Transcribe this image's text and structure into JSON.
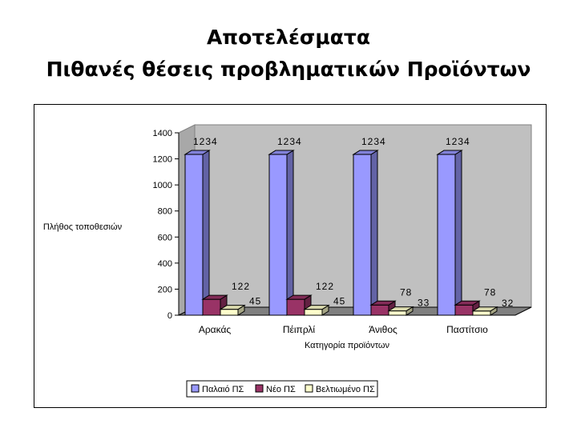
{
  "slide": {
    "title_line1": "Αποτελέσματα",
    "title_line2": "Πιθανές θέσεις προβληματικών Προϊόντων"
  },
  "chart_data": {
    "type": "bar",
    "style": "3d-clustered-column",
    "categories": [
      "Αρακάς",
      "Πέιπρλί",
      "Άνιθος",
      "Παστίτσιο"
    ],
    "series": [
      {
        "name": "Παλαιό ΠΣ",
        "values": [
          1234,
          1234,
          1234,
          1234
        ],
        "labels": [
          "1234",
          "1234",
          "1234",
          "1234"
        ],
        "color": "#9999FF"
      },
      {
        "name": "Νέο ΠΣ",
        "values": [
          122,
          122,
          78,
          78
        ],
        "labels": [
          "122",
          "122",
          "78",
          "78"
        ],
        "color": "#993366"
      },
      {
        "name": "Βελτιωμένο ΠΣ",
        "values": [
          45,
          45,
          33,
          32
        ],
        "labels": [
          "45",
          "45",
          "33",
          "32"
        ],
        "color": "#FFFFCC"
      }
    ],
    "xlabel": "Κατηγορία προϊόντων",
    "ylabel": "Πλήθος τοποθεσιών",
    "ylim": [
      0,
      1400
    ],
    "yticks": [
      0,
      200,
      400,
      600,
      800,
      1000,
      1200,
      1400
    ],
    "ytick_labels": [
      "0",
      "200",
      "400",
      "600",
      "800",
      "1000",
      "1200",
      "1400"
    ],
    "grid": false,
    "legend_position": "bottom"
  }
}
